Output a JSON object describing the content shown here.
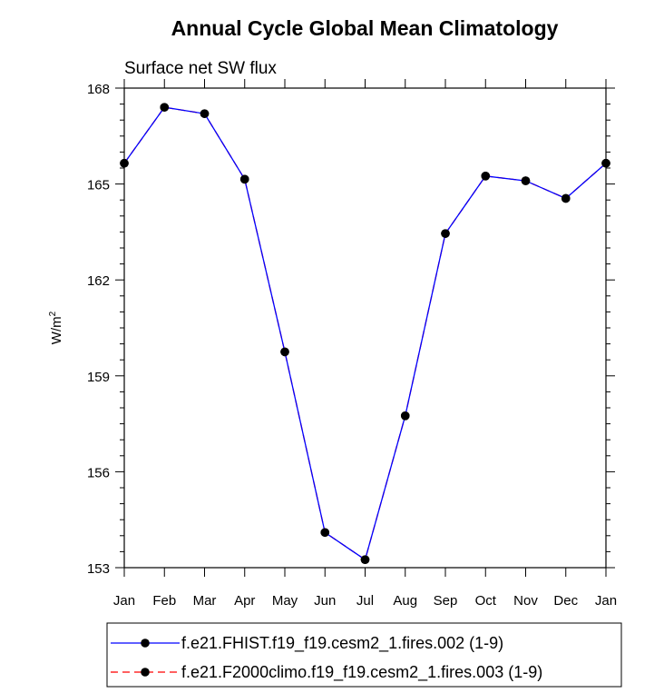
{
  "chart_data": {
    "type": "line",
    "title": "Annual Cycle Global Mean Climatology",
    "subtitle": "Surface net SW flux",
    "xlabel": "",
    "ylabel": "W/m",
    "ylabel_superscript": "2",
    "categories": [
      "Jan",
      "Feb",
      "Mar",
      "Apr",
      "May",
      "Jun",
      "Jul",
      "Aug",
      "Sep",
      "Oct",
      "Nov",
      "Dec",
      "Jan"
    ],
    "ylim": [
      153,
      168
    ],
    "yticks": [
      153,
      156,
      159,
      162,
      165,
      168
    ],
    "grid": false,
    "legend_position": "bottom",
    "series": [
      {
        "name": "f.e21.FHIST.f19_f19.cesm2_1.fires.002 (1-9)",
        "color": "#0000ff",
        "line_style": "solid",
        "marker": "circle",
        "values": [
          165.65,
          167.4,
          167.2,
          165.15,
          159.75,
          154.1,
          153.25,
          157.75,
          163.45,
          165.25,
          165.1,
          164.55,
          165.65
        ]
      },
      {
        "name": "f.e21.F2000climo.f19_f19.cesm2_1.fires.003 (1-9)",
        "color": "#ff0000",
        "line_style": "dashed",
        "marker": "circle",
        "values": [
          165.65,
          167.4,
          167.2,
          165.15,
          159.75,
          154.1,
          153.25,
          157.75,
          163.45,
          165.25,
          165.1,
          164.55,
          165.65
        ]
      }
    ]
  }
}
